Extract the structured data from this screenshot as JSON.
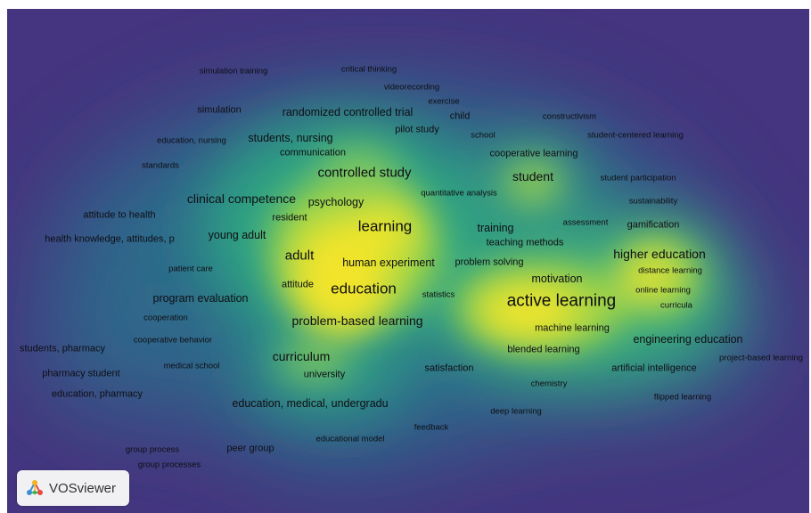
{
  "keywords": [
    {
      "label": "simulation training"
    },
    {
      "label": "critical thinking"
    },
    {
      "label": "videorecording"
    },
    {
      "label": "exercise"
    },
    {
      "label": "simulation"
    },
    {
      "label": "randomized controlled trial"
    },
    {
      "label": "child"
    },
    {
      "label": "constructivism"
    },
    {
      "label": "pilot study"
    },
    {
      "label": "education, nursing"
    },
    {
      "label": "students, nursing"
    },
    {
      "label": "school"
    },
    {
      "label": "student-centered learning"
    },
    {
      "label": "communication"
    },
    {
      "label": "cooperative learning"
    },
    {
      "label": "standards"
    },
    {
      "label": "controlled study"
    },
    {
      "label": "student"
    },
    {
      "label": "student participation"
    },
    {
      "label": "quantitative analysis"
    },
    {
      "label": "clinical competence"
    },
    {
      "label": "psychology"
    },
    {
      "label": "sustainability"
    },
    {
      "label": "attitude to health"
    },
    {
      "label": "resident"
    },
    {
      "label": "learning"
    },
    {
      "label": "training"
    },
    {
      "label": "assessment"
    },
    {
      "label": "gamification"
    },
    {
      "label": "health knowledge, attitudes, p"
    },
    {
      "label": "young adult"
    },
    {
      "label": "teaching methods"
    },
    {
      "label": "adult"
    },
    {
      "label": "higher education"
    },
    {
      "label": "human experiment"
    },
    {
      "label": "problem solving"
    },
    {
      "label": "patient care"
    },
    {
      "label": "distance learning"
    },
    {
      "label": "motivation"
    },
    {
      "label": "attitude"
    },
    {
      "label": "education"
    },
    {
      "label": "online learning"
    },
    {
      "label": "program evaluation"
    },
    {
      "label": "statistics"
    },
    {
      "label": "active learning"
    },
    {
      "label": "curricula"
    },
    {
      "label": "cooperation"
    },
    {
      "label": "problem-based learning"
    },
    {
      "label": "machine learning"
    },
    {
      "label": "cooperative behavior"
    },
    {
      "label": "engineering education"
    },
    {
      "label": "students, pharmacy"
    },
    {
      "label": "blended learning"
    },
    {
      "label": "curriculum"
    },
    {
      "label": "project-based learning"
    },
    {
      "label": "medical school"
    },
    {
      "label": "satisfaction"
    },
    {
      "label": "artificial intelligence"
    },
    {
      "label": "pharmacy student"
    },
    {
      "label": "university"
    },
    {
      "label": "chemistry"
    },
    {
      "label": "education, pharmacy"
    },
    {
      "label": "flipped learning"
    },
    {
      "label": "education, medical, undergradu"
    },
    {
      "label": "deep learning"
    },
    {
      "label": "feedback"
    },
    {
      "label": "educational model"
    },
    {
      "label": "group process"
    },
    {
      "label": "peer group"
    },
    {
      "label": "group processes"
    }
  ],
  "logo": {
    "text": "VOSviewer",
    "icon": "vosviewer-logo-icon"
  },
  "colors": {
    "background": "#45347f",
    "low": "#2f6f8d",
    "mid": "#3cae7c",
    "high": "#f3e72a"
  }
}
